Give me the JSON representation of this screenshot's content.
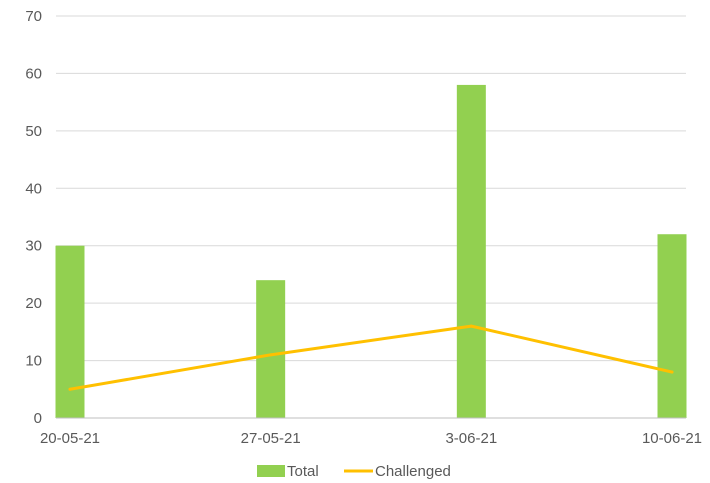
{
  "chart_data": {
    "type": "bar",
    "categories": [
      "20-05-21",
      "27-05-21",
      "3-06-21",
      "10-06-21"
    ],
    "series": [
      {
        "name": "Total",
        "type": "bar",
        "color": "#92D050",
        "values": [
          30,
          24,
          58,
          32
        ]
      },
      {
        "name": "Challenged",
        "type": "line",
        "color": "#FFC000",
        "values": [
          5,
          11,
          16,
          8
        ]
      }
    ],
    "ylim": [
      0,
      70
    ],
    "yticks": [
      0,
      10,
      20,
      30,
      40,
      50,
      60,
      70
    ],
    "grid": true,
    "legend_position": "bottom"
  }
}
